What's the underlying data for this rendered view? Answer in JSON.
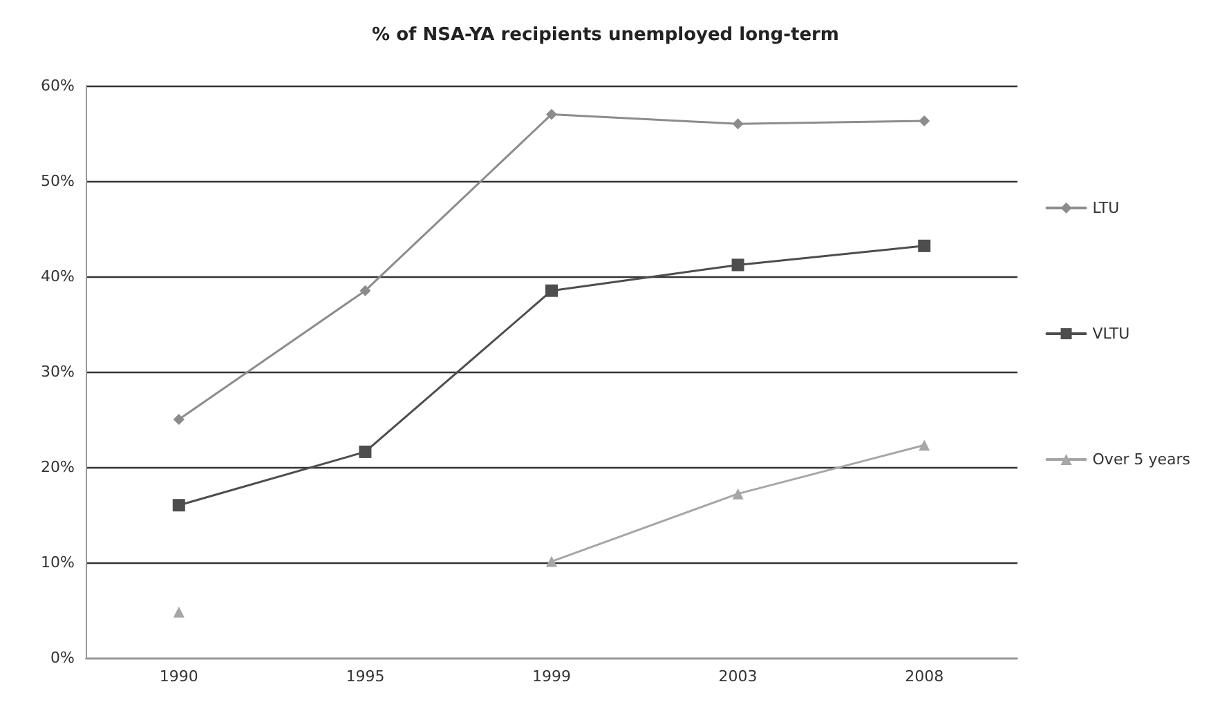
{
  "chart_data": {
    "type": "line",
    "title": "% of NSA-YA recipients unemployed long-term",
    "categories": [
      "1990",
      "1995",
      "1999",
      "2003",
      "2008"
    ],
    "series": [
      {
        "name": "LTU",
        "color": "#8c8c8c",
        "marker": "diamond",
        "values": [
          25,
          38.5,
          57,
          56,
          56.3
        ]
      },
      {
        "name": "VLTU",
        "color": "#4d4d4d",
        "marker": "square",
        "values": [
          16,
          21.6,
          38.5,
          41.2,
          43.2
        ]
      },
      {
        "name": "Over 5 years",
        "color": "#a6a6a6",
        "marker": "triangle",
        "values": [
          4.8,
          null,
          10.1,
          17.2,
          22.3
        ]
      }
    ],
    "ylim": [
      0,
      60
    ],
    "yticks": [
      {
        "value": 0,
        "label": "0%"
      },
      {
        "value": 10,
        "label": "10%"
      },
      {
        "value": 20,
        "label": "20%"
      },
      {
        "value": 30,
        "label": "30%"
      },
      {
        "value": 40,
        "label": "40%"
      },
      {
        "value": 50,
        "label": "50%"
      },
      {
        "value": 60,
        "label": "60%"
      }
    ],
    "grid": "y",
    "legend": "right"
  }
}
